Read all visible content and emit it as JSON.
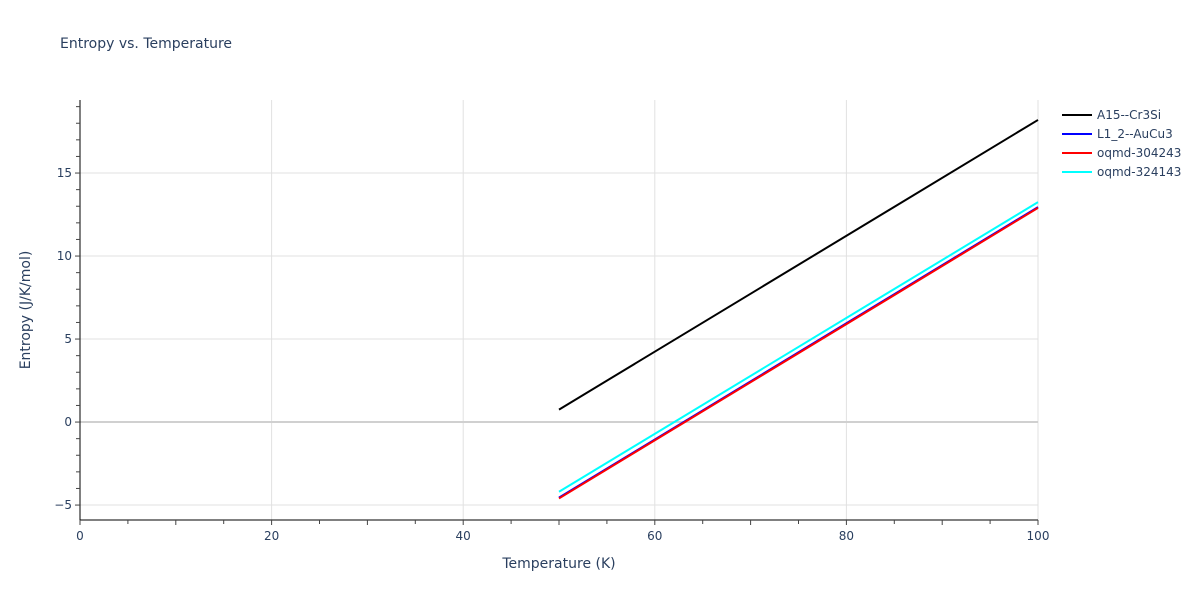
{
  "chart_data": {
    "type": "line",
    "title": "Entropy vs. Temperature",
    "xlabel": "Temperature (K)",
    "ylabel": "Entropy (J/K/mol)",
    "xlim": [
      0,
      100
    ],
    "ylim": [
      -5.9,
      19.4
    ],
    "x_ticks": [
      0,
      20,
      40,
      60,
      80,
      100
    ],
    "y_ticks": [
      -5,
      0,
      5,
      10,
      15
    ],
    "grid": true,
    "legend_position": "right-top",
    "series": [
      {
        "name": "A15--Cr3Si",
        "color": "#000000",
        "x": [
          50,
          100
        ],
        "y": [
          0.75,
          18.2
        ]
      },
      {
        "name": "L1_2--AuCu3",
        "color": "#0000ff",
        "x": [
          50,
          100
        ],
        "y": [
          -4.55,
          12.95
        ]
      },
      {
        "name": "oqmd-304243",
        "color": "#ff0000",
        "x": [
          50,
          100
        ],
        "y": [
          -4.6,
          12.9
        ]
      },
      {
        "name": "oqmd-324143",
        "color": "#00ffff",
        "x": [
          50,
          100
        ],
        "y": [
          -4.2,
          13.25
        ]
      }
    ]
  }
}
